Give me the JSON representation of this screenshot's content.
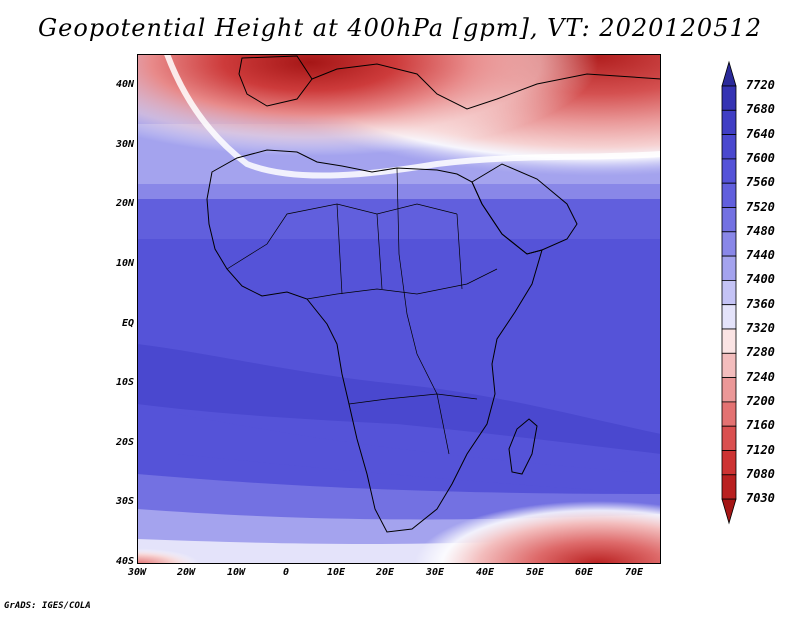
{
  "title": "Geopotential Height at 400hPa [gpm], VT: 2020120512",
  "footer": "GrADS: IGES/COLA",
  "lat_labels": [
    "40N",
    "30N",
    "20N",
    "10N",
    "EQ",
    "10S",
    "20S",
    "30S",
    "40S"
  ],
  "lon_labels": [
    "30W",
    "20W",
    "10W",
    "0",
    "10E",
    "20E",
    "30E",
    "40E",
    "50E",
    "60E",
    "70E"
  ],
  "colorbar": {
    "levels": [
      "7720",
      "7680",
      "7640",
      "7600",
      "7560",
      "7520",
      "7480",
      "7440",
      "7400",
      "7360",
      "7320",
      "7280",
      "7240",
      "7200",
      "7160",
      "7120",
      "7080",
      "7030"
    ],
    "colors": [
      "#2b2a9a",
      "#3533b3",
      "#403ec4",
      "#4a48cf",
      "#5553d8",
      "#615fdd",
      "#7371e2",
      "#8987e8",
      "#a4a3ee",
      "#c4c3f5",
      "#e4e3fa",
      "#fbe4e4",
      "#f3bdbd",
      "#eb9898",
      "#e37272",
      "#da5050",
      "#cd3333",
      "#b92020",
      "#a51616"
    ]
  }
}
